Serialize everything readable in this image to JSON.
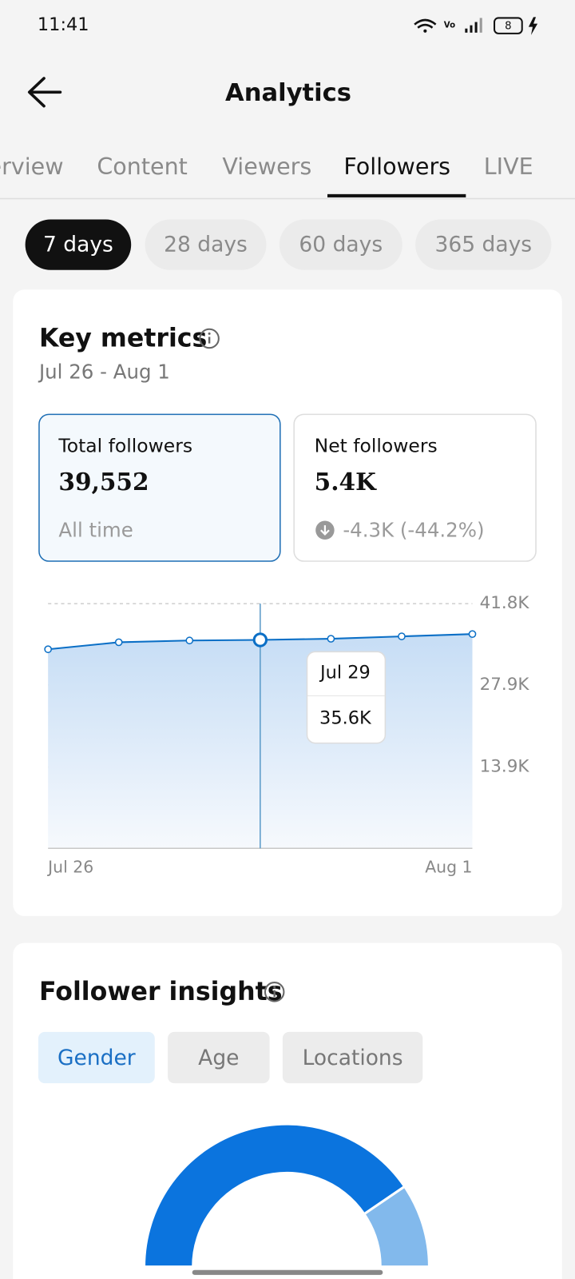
{
  "status_bar": {
    "time": "11:41",
    "battery": "8"
  },
  "header": {
    "title": "Analytics"
  },
  "tabs": [
    "Overview",
    "Content",
    "Viewers",
    "Followers",
    "LIVE"
  ],
  "ranges": [
    "7 days",
    "28 days",
    "60 days",
    "365 days"
  ],
  "key_metrics": {
    "title": "Key metrics",
    "date_range": "Jul 26 - Aug 1",
    "total": {
      "label": "Total followers",
      "value": "39,552",
      "note": "All time"
    },
    "net": {
      "label": "Net followers",
      "value": "5.4K",
      "change": "-4.3K (-44.2%)"
    }
  },
  "insights": {
    "title": "Follower insights",
    "tabs": [
      "Gender",
      "Age",
      "Locations"
    ]
  },
  "chart_data": [
    {
      "type": "line",
      "categories": [
        "Jul 26",
        null,
        null,
        null,
        null,
        null,
        "Aug 1"
      ],
      "series": [
        {
          "color": "#0b6fc6",
          "values": [
            34000,
            35200,
            35500,
            35600,
            35800,
            36200,
            36600
          ],
          "value_labels": [
            null,
            null,
            null,
            "35.6K",
            null,
            null,
            null
          ]
        }
      ],
      "tooltip": {
        "title": "Jul 29"
      },
      "ylim": [
        0,
        41800
      ],
      "yticks": [
        {
          "value": 41800,
          "label": "41.8K"
        },
        {
          "value": 27900,
          "label": "27.9K"
        },
        {
          "value": 13900,
          "label": "13.9K"
        }
      ],
      "grid": true
    },
    {
      "type": "pie",
      "values": [
        81,
        19
      ],
      "colors": [
        "#0b74de",
        "#82b9ec"
      ]
    }
  ]
}
